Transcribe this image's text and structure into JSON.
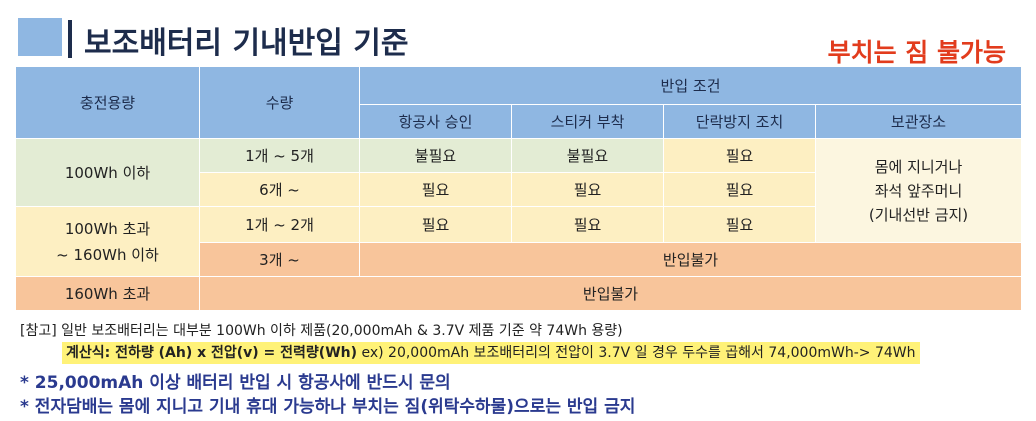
{
  "title": "보조배터리 기내반입 기준",
  "subtitle": "부치는 짐 불가능",
  "table": {
    "headers": {
      "capacity": "충전용량",
      "quantity": "수량",
      "conditions": "반입 조건",
      "airline_approval": "항공사 승인",
      "sticker": "스티커 부착",
      "short_circuit": "단락방지 조치",
      "storage": "보관장소"
    },
    "rows": {
      "r1": {
        "capacity": "100Wh 이하",
        "quantity": "1개 ~ 5개",
        "approval": "불필요",
        "sticker": "불필요",
        "short": "필요"
      },
      "r2": {
        "quantity": "6개 ~",
        "approval": "필요",
        "sticker": "필요",
        "short": "필요"
      },
      "r3": {
        "capacity_line1": "100Wh 초과",
        "capacity_line2": "~ 160Wh 이하",
        "quantity": "1개 ~ 2개",
        "approval": "필요",
        "sticker": "필요",
        "short": "필요"
      },
      "r4": {
        "quantity": "3개 ~",
        "status": "반입불가"
      },
      "r5": {
        "capacity": "160Wh 초과",
        "status": "반입불가"
      }
    },
    "storage": {
      "line1": "몸에 지니거나",
      "line2": "좌석 앞주머니",
      "line3": "(기내선반 금지)"
    }
  },
  "notes": {
    "reference": "[참고] 일반 보조배터리는 대부분 100Wh 이하 제품(20,000mAh & 3.7V 제품 기준 약 74Wh 용량)",
    "formula_label": "계산식: 전하량 (Ah) x 전압(v) = 전력량(Wh)",
    "formula_example": "ex) 20,000mAh 보조배터리의 전압이 3.7V 일 경우 두수를 곱해서 74,000mWh-> 74Wh",
    "star1": "* 25,000mAh 이상 배터리 반입 시 항공사에 반드시 문의",
    "star2": "* 전자담배는 몸에 지니고 기내 휴대 가능하나 부치는 짐(위탁수하물)으로는 반입 금지"
  }
}
